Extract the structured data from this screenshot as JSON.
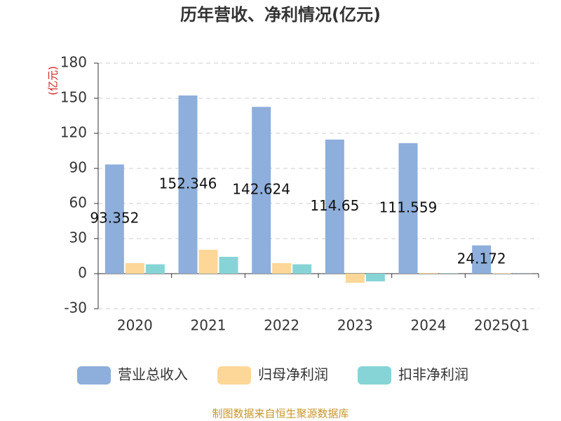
{
  "chart_data": {
    "type": "bar",
    "title": "历年营收、净利情况(亿元)",
    "y_label": "(亿元)",
    "categories": [
      "2020",
      "2021",
      "2022",
      "2023",
      "2024",
      "2025Q1"
    ],
    "series": [
      {
        "name": "营业总收入",
        "color": "#8eaedb",
        "values": [
          93.352,
          152.346,
          142.624,
          114.65,
          111.559,
          24.172
        ],
        "show_labels": true
      },
      {
        "name": "归母净利润",
        "color": "#fdd797",
        "values": [
          9,
          20.4,
          9,
          -7.8,
          0.6,
          0.3
        ]
      },
      {
        "name": "扣非净利润",
        "color": "#86d4d6",
        "values": [
          8,
          14.4,
          8,
          -6.6,
          0.2,
          0.1
        ]
      }
    ],
    "ylim": [
      -30,
      180
    ],
    "yticks": [
      -30,
      0,
      30,
      60,
      90,
      120,
      150,
      180
    ],
    "grid": true,
    "legend": "bottom",
    "source": "制图数据来自恒生聚源数据库"
  }
}
